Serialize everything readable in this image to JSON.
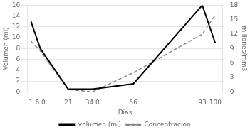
{
  "chart_data": {
    "type": "line",
    "xlabel": "Dias",
    "ylabel": "Volumen (ml)",
    "y2label": "millones/mm3",
    "x": [
      1,
      6.0,
      21,
      34.0,
      56,
      93,
      100
    ],
    "xlim": [
      -1,
      104
    ],
    "xticks": [
      1,
      {
        "value": 6.0,
        "label": "6.0"
      },
      21,
      {
        "value": 34.0,
        "label": "34.0"
      },
      56,
      93,
      100
    ],
    "ylim": [
      0,
      16
    ],
    "yticks": [
      0,
      2,
      4,
      6,
      8,
      10,
      12,
      14,
      16
    ],
    "y2lim": [
      0,
      18
    ],
    "y2ticks": [
      0,
      3,
      6,
      9,
      12,
      15,
      18
    ],
    "series": [
      {
        "name": "volumen (ml)",
        "color": "#000000",
        "line_style": "solid",
        "values": [
          13,
          8,
          0.5,
          0.5,
          1.5,
          16,
          9
        ]
      },
      {
        "name": "Concentracion",
        "color": "#888888",
        "line_style": "dashed",
        "axis": "y2",
        "values": [
          10.5,
          8.5,
          0.5,
          0.0,
          4.0,
          12.0,
          16.0
        ]
      }
    ],
    "grid": true,
    "legend": "bottom"
  }
}
